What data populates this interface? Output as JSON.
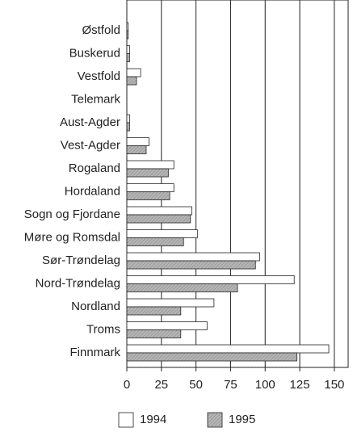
{
  "chart_data": {
    "type": "bar",
    "orientation": "horizontal",
    "categories": [
      "Østfold",
      "Buskerud",
      "Vestfold",
      "Telemark",
      "Aust-Agder",
      "Vest-Agder",
      "Rogaland",
      "Hordaland",
      "Sogn og Fjordane",
      "Møre og Romsdal",
      "Sør-Trøndelag",
      "Nord-Trøndelag",
      "Nordland",
      "Troms",
      "Finnmark"
    ],
    "series": [
      {
        "name": "1994",
        "color": "#ffffff",
        "values": [
          1,
          2,
          10,
          0,
          2,
          16,
          34,
          34,
          47,
          51,
          96,
          121,
          63,
          58,
          146
        ]
      },
      {
        "name": "1995",
        "color": "#b5b5b5",
        "values": [
          1,
          2,
          7,
          0,
          2,
          14,
          30,
          31,
          46,
          41,
          93,
          80,
          39,
          39,
          123
        ]
      }
    ],
    "xlim": [
      0,
      160
    ],
    "xticks": [
      0,
      25,
      50,
      75,
      100,
      125,
      150
    ],
    "grid": true
  }
}
